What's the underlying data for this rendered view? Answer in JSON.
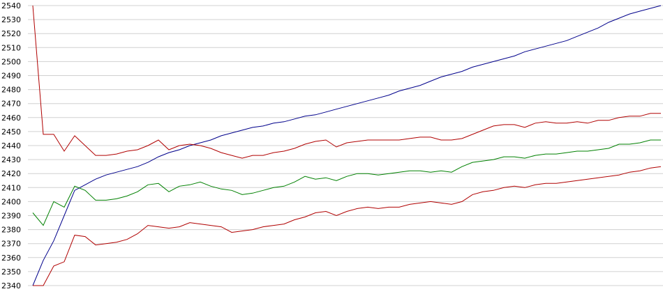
{
  "chart_data": {
    "type": "line",
    "ylim": [
      2340,
      2540
    ],
    "yticks": [
      2340,
      2350,
      2360,
      2370,
      2380,
      2390,
      2400,
      2410,
      2420,
      2430,
      2440,
      2450,
      2460,
      2470,
      2480,
      2490,
      2500,
      2510,
      2520,
      2530,
      2540
    ],
    "grid": true,
    "series": [
      {
        "color": "#00008b",
        "values": [
          2340,
          2358,
          2372,
          2390,
          2408,
          2412,
          2416,
          2419,
          2421,
          2423,
          2425,
          2428,
          2432,
          2435,
          2437,
          2440,
          2442,
          2444,
          2447,
          2449,
          2451,
          2453,
          2454,
          2456,
          2457,
          2459,
          2461,
          2462,
          2464,
          2466,
          2468,
          2470,
          2472,
          2474,
          2476,
          2479,
          2481,
          2483,
          2486,
          2489,
          2491,
          2493,
          2496,
          2498,
          2500,
          2502,
          2504,
          2507,
          2509,
          2511,
          2513,
          2515,
          2518,
          2521,
          2524,
          2528,
          2531,
          2534,
          2536,
          2538,
          2540
        ]
      },
      {
        "color": "#b00000",
        "values": [
          2540,
          2448,
          2448,
          2436,
          2447,
          2440,
          2433,
          2433,
          2434,
          2436,
          2437,
          2440,
          2444,
          2437,
          2440,
          2441,
          2440,
          2438,
          2435,
          2433,
          2431,
          2433,
          2433,
          2435,
          2436,
          2438,
          2441,
          2443,
          2444,
          2439,
          2442,
          2443,
          2444,
          2444,
          2444,
          2444,
          2445,
          2446,
          2446,
          2444,
          2444,
          2445,
          2448,
          2451,
          2454,
          2455,
          2455,
          2453,
          2456,
          2457,
          2456,
          2456,
          2457,
          2456,
          2458,
          2458,
          2460,
          2461,
          2461,
          2463,
          2463
        ]
      },
      {
        "color": "#008000",
        "values": [
          2392,
          2383,
          2400,
          2396,
          2411,
          2408,
          2401,
          2401,
          2402,
          2404,
          2407,
          2412,
          2413,
          2407,
          2411,
          2412,
          2414,
          2411,
          2409,
          2408,
          2405,
          2406,
          2408,
          2410,
          2411,
          2414,
          2418,
          2416,
          2417,
          2415,
          2418,
          2420,
          2420,
          2419,
          2420,
          2421,
          2422,
          2422,
          2421,
          2422,
          2421,
          2425,
          2428,
          2429,
          2430,
          2432,
          2432,
          2431,
          2433,
          2434,
          2434,
          2435,
          2436,
          2436,
          2437,
          2438,
          2441,
          2441,
          2442,
          2444,
          2444
        ]
      },
      {
        "color": "#b00000",
        "values": [
          2340,
          2340,
          2354,
          2357,
          2376,
          2375,
          2369,
          2370,
          2371,
          2373,
          2377,
          2383,
          2382,
          2381,
          2382,
          2385,
          2384,
          2383,
          2382,
          2378,
          2379,
          2380,
          2382,
          2383,
          2384,
          2387,
          2389,
          2392,
          2393,
          2390,
          2393,
          2395,
          2396,
          2395,
          2396,
          2396,
          2398,
          2399,
          2400,
          2399,
          2398,
          2400,
          2405,
          2407,
          2408,
          2410,
          2411,
          2410,
          2412,
          2413,
          2413,
          2414,
          2415,
          2416,
          2417,
          2418,
          2419,
          2421,
          2422,
          2424,
          2425
        ]
      }
    ]
  }
}
